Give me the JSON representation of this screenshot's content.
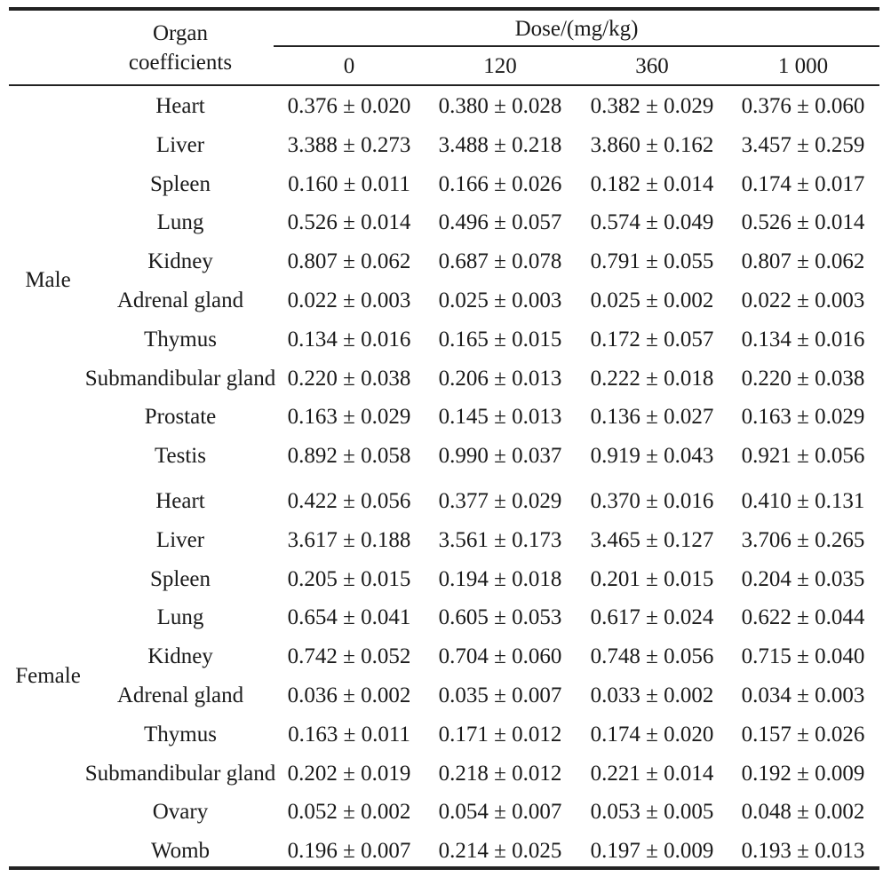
{
  "header": {
    "organ_label_line1": "Organ",
    "organ_label_line2": "coefficients",
    "dose_label": "Dose/(mg/kg)",
    "doses": [
      "0",
      "120",
      "360",
      "1 000"
    ]
  },
  "groups": [
    {
      "sex": "Male",
      "rows": [
        {
          "organ": "Heart",
          "values": [
            "0.376 ± 0.020",
            "0.380 ± 0.028",
            "0.382 ± 0.029",
            "0.376 ± 0.060"
          ]
        },
        {
          "organ": "Liver",
          "values": [
            "3.388 ± 0.273",
            "3.488 ± 0.218",
            "3.860 ± 0.162",
            "3.457 ± 0.259"
          ]
        },
        {
          "organ": "Spleen",
          "values": [
            "0.160 ± 0.011",
            "0.166 ± 0.026",
            "0.182 ± 0.014",
            "0.174 ± 0.017"
          ]
        },
        {
          "organ": "Lung",
          "values": [
            "0.526 ± 0.014",
            "0.496 ± 0.057",
            "0.574 ± 0.049",
            "0.526 ± 0.014"
          ]
        },
        {
          "organ": "Kidney",
          "values": [
            "0.807 ± 0.062",
            "0.687 ± 0.078",
            "0.791 ± 0.055",
            "0.807 ± 0.062"
          ]
        },
        {
          "organ": "Adrenal gland",
          "values": [
            "0.022 ± 0.003",
            "0.025 ± 0.003",
            "0.025 ± 0.002",
            "0.022 ± 0.003"
          ]
        },
        {
          "organ": "Thymus",
          "values": [
            "0.134 ± 0.016",
            "0.165 ± 0.015",
            "0.172 ± 0.057",
            "0.134 ± 0.016"
          ]
        },
        {
          "organ": "Submandibular gland",
          "values": [
            "0.220 ± 0.038",
            "0.206 ± 0.013",
            "0.222 ± 0.018",
            "0.220 ± 0.038"
          ]
        },
        {
          "organ": "Prostate",
          "values": [
            "0.163 ± 0.029",
            "0.145 ± 0.013",
            "0.136 ± 0.027",
            "0.163 ± 0.029"
          ]
        },
        {
          "organ": "Testis",
          "values": [
            "0.892 ± 0.058",
            "0.990 ± 0.037",
            "0.919 ± 0.043",
            "0.921 ± 0.056"
          ]
        }
      ]
    },
    {
      "sex": "Female",
      "rows": [
        {
          "organ": "Heart",
          "values": [
            "0.422 ± 0.056",
            "0.377 ± 0.029",
            "0.370 ± 0.016",
            "0.410 ± 0.131"
          ]
        },
        {
          "organ": "Liver",
          "values": [
            "3.617 ± 0.188",
            "3.561 ± 0.173",
            "3.465 ± 0.127",
            "3.706 ± 0.265"
          ]
        },
        {
          "organ": "Spleen",
          "values": [
            "0.205 ± 0.015",
            "0.194 ± 0.018",
            "0.201 ± 0.015",
            "0.204 ± 0.035"
          ]
        },
        {
          "organ": "Lung",
          "values": [
            "0.654 ± 0.041",
            "0.605 ± 0.053",
            "0.617 ± 0.024",
            "0.622 ± 0.044"
          ]
        },
        {
          "organ": "Kidney",
          "values": [
            "0.742 ± 0.052",
            "0.704 ± 0.060",
            "0.748 ± 0.056",
            "0.715 ± 0.040"
          ]
        },
        {
          "organ": "Adrenal gland",
          "values": [
            "0.036 ± 0.002",
            "0.035 ± 0.007",
            "0.033 ± 0.002",
            "0.034 ± 0.003"
          ]
        },
        {
          "organ": "Thymus",
          "values": [
            "0.163 ± 0.011",
            "0.171 ± 0.012",
            "0.174 ± 0.020",
            "0.157 ± 0.026"
          ]
        },
        {
          "organ": "Submandibular gland",
          "values": [
            "0.202 ± 0.019",
            "0.218 ± 0.012",
            "0.221 ± 0.014",
            "0.192 ± 0.009"
          ]
        },
        {
          "organ": "Ovary",
          "values": [
            "0.052 ± 0.002",
            "0.054 ± 0.007",
            "0.053 ± 0.005",
            "0.048 ± 0.002"
          ]
        },
        {
          "organ": "Womb",
          "values": [
            "0.196 ± 0.007",
            "0.214 ± 0.025",
            "0.197 ± 0.009",
            "0.193 ± 0.013"
          ]
        }
      ]
    }
  ]
}
